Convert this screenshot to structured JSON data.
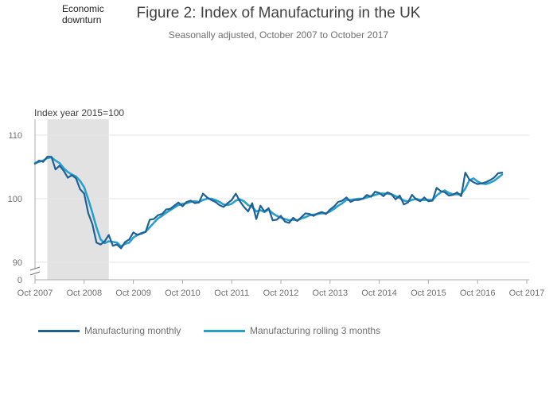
{
  "chart_data": {
    "type": "line",
    "title": "Figure 2: Index of Manufacturing in the UK",
    "subtitle": "Seasonally adjusted, October 2007 to October 2017",
    "ylabel": "Index year 2015=100",
    "shaded_region": {
      "label": "Economic downturn",
      "start": 2008.0,
      "end": 2009.25
    },
    "x_ticks": [
      {
        "value": 2007.75,
        "label": "Oct 2007"
      },
      {
        "value": 2008.75,
        "label": "Oct 2008"
      },
      {
        "value": 2009.75,
        "label": "Oct 2009"
      },
      {
        "value": 2010.75,
        "label": "Oct 2010"
      },
      {
        "value": 2011.75,
        "label": "Oct 2011"
      },
      {
        "value": 2012.75,
        "label": "Oct 2012"
      },
      {
        "value": 2013.75,
        "label": "Oct 2013"
      },
      {
        "value": 2014.75,
        "label": "Oct 2014"
      },
      {
        "value": 2015.75,
        "label": "Oct 2015"
      },
      {
        "value": 2016.75,
        "label": "Oct 2016"
      },
      {
        "value": 2017.75,
        "label": "Oct 2017"
      }
    ],
    "y_ticks": [
      {
        "value": 90,
        "label": "90"
      },
      {
        "value": 100,
        "label": "100"
      },
      {
        "value": 110,
        "label": "110"
      }
    ],
    "y_zero_label": "0",
    "ylim": [
      88.5,
      112.5
    ],
    "xlim": [
      2007.75,
      2017.75
    ],
    "series": [
      {
        "name": "Manufacturing monthly",
        "color": "#206095",
        "values": [
          105.5,
          106.0,
          105.8,
          106.6,
          106.6,
          104.6,
          105.2,
          104.4,
          103.3,
          103.7,
          103.2,
          101.5,
          100.8,
          97.7,
          96.0,
          93.1,
          92.8,
          93.3,
          94.3,
          92.6,
          92.8,
          92.2,
          93.2,
          93.6,
          94.7,
          94.3,
          94.5,
          94.8,
          96.7,
          96.8,
          97.4,
          97.6,
          98.3,
          98.4,
          98.9,
          99.4,
          98.8,
          99.5,
          99.7,
          99.3,
          99.4,
          100.8,
          100.2,
          99.8,
          99.5,
          99.0,
          98.7,
          99.3,
          99.8,
          100.8,
          99.6,
          98.7,
          98.0,
          99.3,
          96.8,
          98.9,
          98.0,
          98.5,
          96.6,
          96.7,
          97.3,
          96.4,
          96.2,
          97.0,
          96.5,
          97.1,
          97.7,
          97.6,
          97.3,
          97.7,
          97.9,
          97.6,
          98.3,
          98.8,
          99.5,
          99.7,
          100.2,
          99.5,
          99.8,
          99.8,
          100.0,
          100.6,
          100.3,
          101.1,
          100.9,
          100.4,
          101.0,
          100.7,
          99.9,
          100.5,
          99.1,
          99.4,
          100.6,
          99.9,
          99.6,
          100.2,
          99.6,
          99.7,
          101.7,
          101.2,
          101.0,
          100.5,
          100.6,
          101.0,
          100.4,
          104.1,
          103.0,
          102.6,
          102.3,
          102.4,
          102.6,
          102.9,
          103.3,
          104.0,
          104.1
        ]
      },
      {
        "name": "Manufacturing rolling 3 months",
        "color": "#27A0CC",
        "values": [
          105.6,
          105.8,
          106.0,
          106.4,
          106.5,
          106.0,
          105.6,
          104.8,
          104.2,
          103.8,
          103.5,
          102.8,
          101.8,
          99.9,
          97.8,
          95.5,
          93.6,
          93.0,
          93.3,
          93.2,
          93.1,
          92.5,
          92.9,
          93.1,
          93.9,
          94.3,
          94.6,
          94.8,
          95.5,
          96.2,
          96.9,
          97.3,
          97.8,
          98.2,
          98.6,
          99.0,
          99.2,
          99.3,
          99.5,
          99.6,
          99.5,
          99.8,
          100.0,
          100.0,
          99.8,
          99.5,
          99.1,
          99.0,
          99.2,
          99.7,
          99.9,
          99.6,
          99.0,
          98.7,
          98.0,
          98.2,
          97.9,
          98.3,
          97.7,
          97.3,
          97.0,
          96.8,
          96.6,
          96.7,
          96.6,
          96.9,
          97.1,
          97.4,
          97.5,
          97.6,
          97.7,
          97.7,
          98.0,
          98.4,
          98.9,
          99.3,
          99.8,
          99.8,
          99.9,
          100.0,
          100.0,
          100.2,
          100.4,
          100.6,
          100.8,
          100.8,
          100.8,
          100.7,
          100.4,
          100.1,
          99.7,
          99.6,
          99.8,
          100.0,
          99.8,
          99.8,
          99.8,
          99.8,
          100.5,
          101.0,
          101.3,
          100.9,
          100.7,
          100.7,
          100.7,
          101.6,
          102.9,
          103.2,
          102.7,
          102.4,
          102.3,
          102.5,
          102.8,
          103.3,
          103.8
        ]
      }
    ],
    "start": 2007.75,
    "step": 0.0833333333
  }
}
